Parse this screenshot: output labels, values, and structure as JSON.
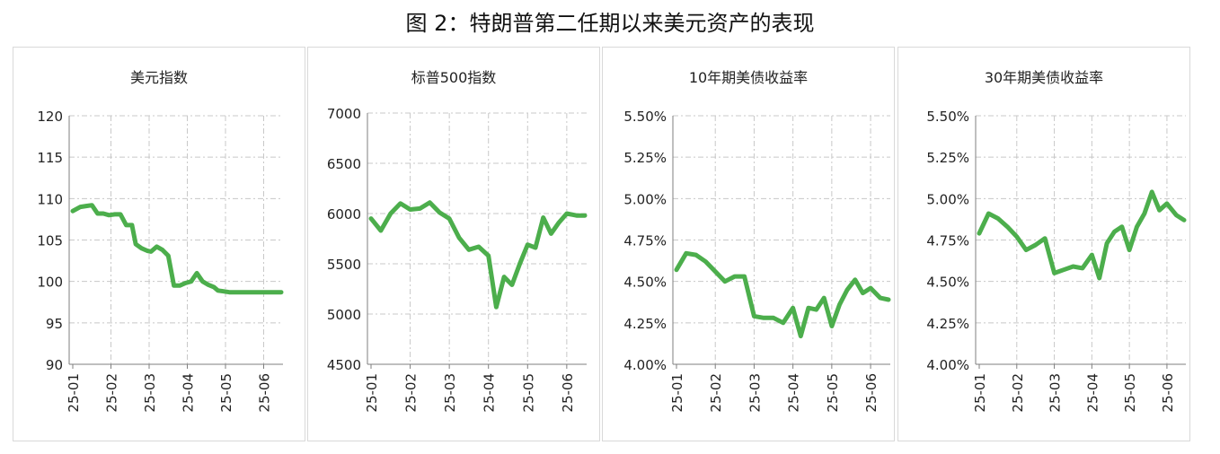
{
  "figure_title": "图 2：特朗普第二任期以来美元资产的表现",
  "colors": {
    "line": "#4cae4c",
    "grid": "#c8c8c8",
    "axis": "#7f7f7f",
    "text": "#222222"
  },
  "chart_data": [
    {
      "type": "line",
      "title": "美元指数",
      "ylim": [
        90,
        120
      ],
      "yticks": [
        "120",
        "115",
        "110",
        "105",
        "100",
        "95",
        "90"
      ],
      "xticks": [
        "25-01",
        "25-02",
        "25-03",
        "25-04",
        "25-05",
        "25-06"
      ],
      "grid": true,
      "series": [
        {
          "x": [
            0.0,
            0.2,
            0.35,
            0.5,
            0.65,
            0.8,
            0.95,
            1.1,
            1.25,
            1.4,
            1.55,
            1.65,
            1.8,
            1.95,
            2.05,
            2.2,
            2.35,
            2.5,
            2.65,
            2.8,
            2.95,
            3.1,
            3.25,
            3.4,
            3.55,
            3.7,
            3.8,
            3.95,
            4.1,
            4.25,
            4.4,
            4.55,
            4.7,
            4.85,
            5.0,
            5.15,
            5.3,
            5.5,
            5.65
          ],
          "y": [
            108.5,
            109,
            109.1,
            109.2,
            108.2,
            108.2,
            108.0,
            108.1,
            108.1,
            106.8,
            106.8,
            104.5,
            104.0,
            103.7,
            103.6,
            104.2,
            103.8,
            103.1,
            99.5,
            99.5,
            99.8,
            100.0,
            101.0,
            100.0,
            99.6,
            99.3,
            98.9,
            98.8,
            98.7,
            98.7,
            98.7,
            98.7,
            98.7,
            98.7,
            98.7,
            98.7,
            98.7,
            98.7,
            98.7
          ]
        }
      ]
    },
    {
      "type": "line",
      "title": "标普500指数",
      "ylim": [
        4500,
        7000
      ],
      "yticks": [
        "7000",
        "6500",
        "6000",
        "5500",
        "5000",
        "4500"
      ],
      "xticks": [
        "25-01",
        "25-02",
        "25-03",
        "25-04",
        "25-05",
        "25-06"
      ],
      "grid": true,
      "series": [
        {
          "x": [
            0.0,
            0.25,
            0.5,
            0.75,
            1.0,
            1.25,
            1.5,
            1.75,
            2.0,
            2.25,
            2.5,
            2.75,
            3.0,
            3.2,
            3.4,
            3.6,
            3.8,
            4.0,
            4.2,
            4.4,
            4.6,
            4.8,
            5.0,
            5.25,
            5.5,
            5.65
          ],
          "y": [
            5950,
            5830,
            6000,
            6100,
            6040,
            6050,
            6110,
            6010,
            5950,
            5760,
            5640,
            5670,
            5580,
            5070,
            5370,
            5290,
            5500,
            5690,
            5660,
            5960,
            5800,
            5910,
            6000,
            5980,
            5980,
            5980
          ]
        }
      ]
    },
    {
      "type": "line",
      "title": "10年期美债收益率",
      "ylim": [
        4.0,
        5.5
      ],
      "yticks": [
        "5.50%",
        "5.25%",
        "5.00%",
        "4.75%",
        "4.50%",
        "4.25%",
        "4.00%"
      ],
      "xticks": [
        "25-01",
        "25-02",
        "25-03",
        "25-04",
        "25-05",
        "25-06"
      ],
      "grid": true,
      "series": [
        {
          "x": [
            0.0,
            0.25,
            0.5,
            0.75,
            1.0,
            1.25,
            1.5,
            1.75,
            2.0,
            2.25,
            2.5,
            2.75,
            3.0,
            3.2,
            3.4,
            3.6,
            3.8,
            4.0,
            4.2,
            4.4,
            4.6,
            4.8,
            5.0,
            5.25,
            5.5,
            5.65
          ],
          "y": [
            4.57,
            4.67,
            4.66,
            4.62,
            4.56,
            4.5,
            4.53,
            4.53,
            4.29,
            4.28,
            4.28,
            4.25,
            4.34,
            4.17,
            4.34,
            4.33,
            4.4,
            4.23,
            4.36,
            4.45,
            4.51,
            4.43,
            4.46,
            4.4,
            4.39,
            4.39
          ]
        }
      ]
    },
    {
      "type": "line",
      "title": "30年期美债收益率",
      "ylim": [
        4.0,
        5.5
      ],
      "yticks": [
        "5.50%",
        "5.25%",
        "5.00%",
        "4.75%",
        "4.50%",
        "4.25%",
        "4.00%"
      ],
      "xticks": [
        "25-01",
        "25-02",
        "25-03",
        "25-04",
        "25-05",
        "25-06"
      ],
      "grid": true,
      "series": [
        {
          "x": [
            0.0,
            0.25,
            0.5,
            0.75,
            1.0,
            1.25,
            1.5,
            1.75,
            2.0,
            2.25,
            2.5,
            2.75,
            3.0,
            3.2,
            3.4,
            3.6,
            3.8,
            4.0,
            4.2,
            4.4,
            4.6,
            4.8,
            5.0,
            5.25,
            5.5,
            5.65
          ],
          "y": [
            4.79,
            4.91,
            4.88,
            4.83,
            4.77,
            4.69,
            4.72,
            4.76,
            4.55,
            4.57,
            4.59,
            4.58,
            4.66,
            4.52,
            4.73,
            4.8,
            4.83,
            4.69,
            4.83,
            4.91,
            5.04,
            4.93,
            4.97,
            4.9,
            4.87,
            4.87
          ]
        }
      ]
    }
  ]
}
